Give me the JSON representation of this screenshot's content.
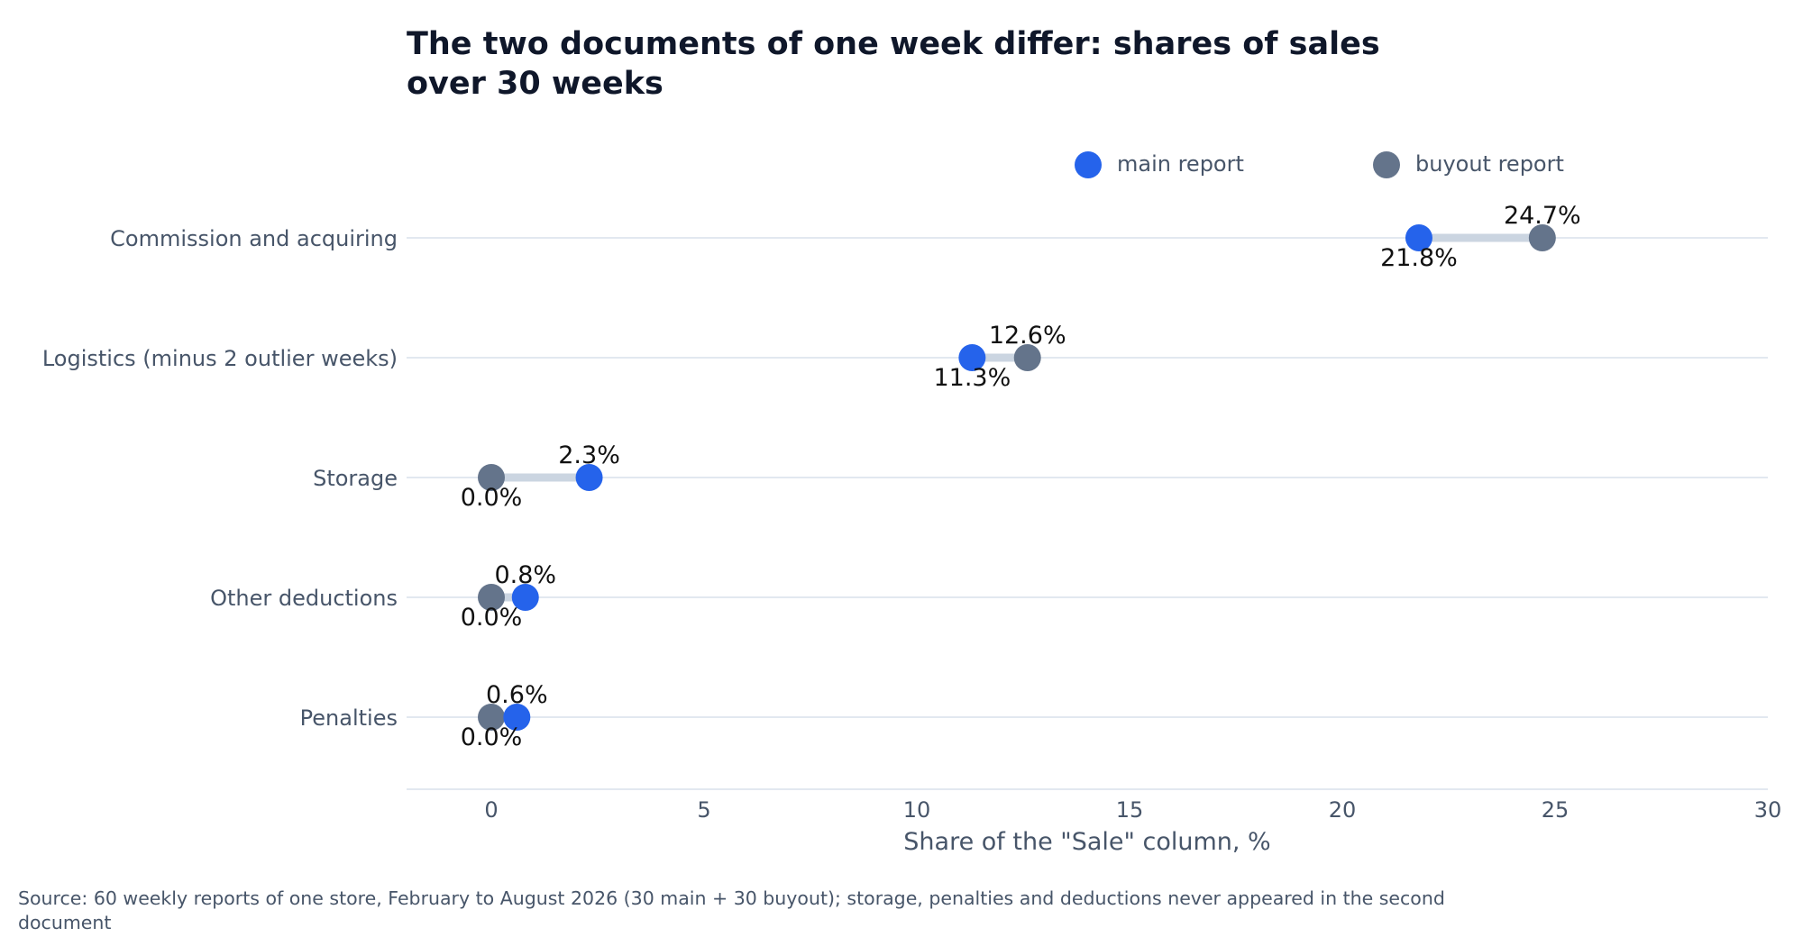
{
  "colors": {
    "main": "#2563eb",
    "buyout": "#64748b",
    "connector": "#cbd5e1",
    "gridline": "#e2e8f0",
    "text": "#475569",
    "title": "#0f172a"
  },
  "chart_data": {
    "type": "dumbbell",
    "title_lines": [
      "The two documents of one week differ: shares of sales",
      "over 30 weeks"
    ],
    "xlabel": "Share of the \"Sale\" column, %",
    "ylabel": "",
    "xlim": [
      -2,
      30
    ],
    "xticks": [
      "0",
      "5",
      "10",
      "15",
      "20",
      "25",
      "30"
    ],
    "grid": "horizontal lines at each category",
    "legend_position": "top-right",
    "categories": [
      "Commission and acquiring",
      "Logistics (minus 2 outlier weeks)",
      "Storage",
      "Other deductions",
      "Penalties"
    ],
    "series": [
      {
        "name": "main report",
        "values": [
          21.8,
          11.3,
          2.3,
          0.8,
          0.6
        ],
        "labels": [
          "21.8%",
          "11.3%",
          "2.3%",
          "0.8%",
          "0.6%"
        ]
      },
      {
        "name": "buyout report",
        "values": [
          24.7,
          12.6,
          0.0,
          0.0,
          0.0
        ],
        "labels": [
          "24.7%",
          "12.6%",
          "0.0%",
          "0.0%",
          "0.0%"
        ]
      }
    ],
    "source_lines": [
      "Source: 60 weekly reports of one store, February to August 2026 (30 main + 30 buyout); storage, penalties and deductions never appeared in the second",
      "document"
    ]
  }
}
